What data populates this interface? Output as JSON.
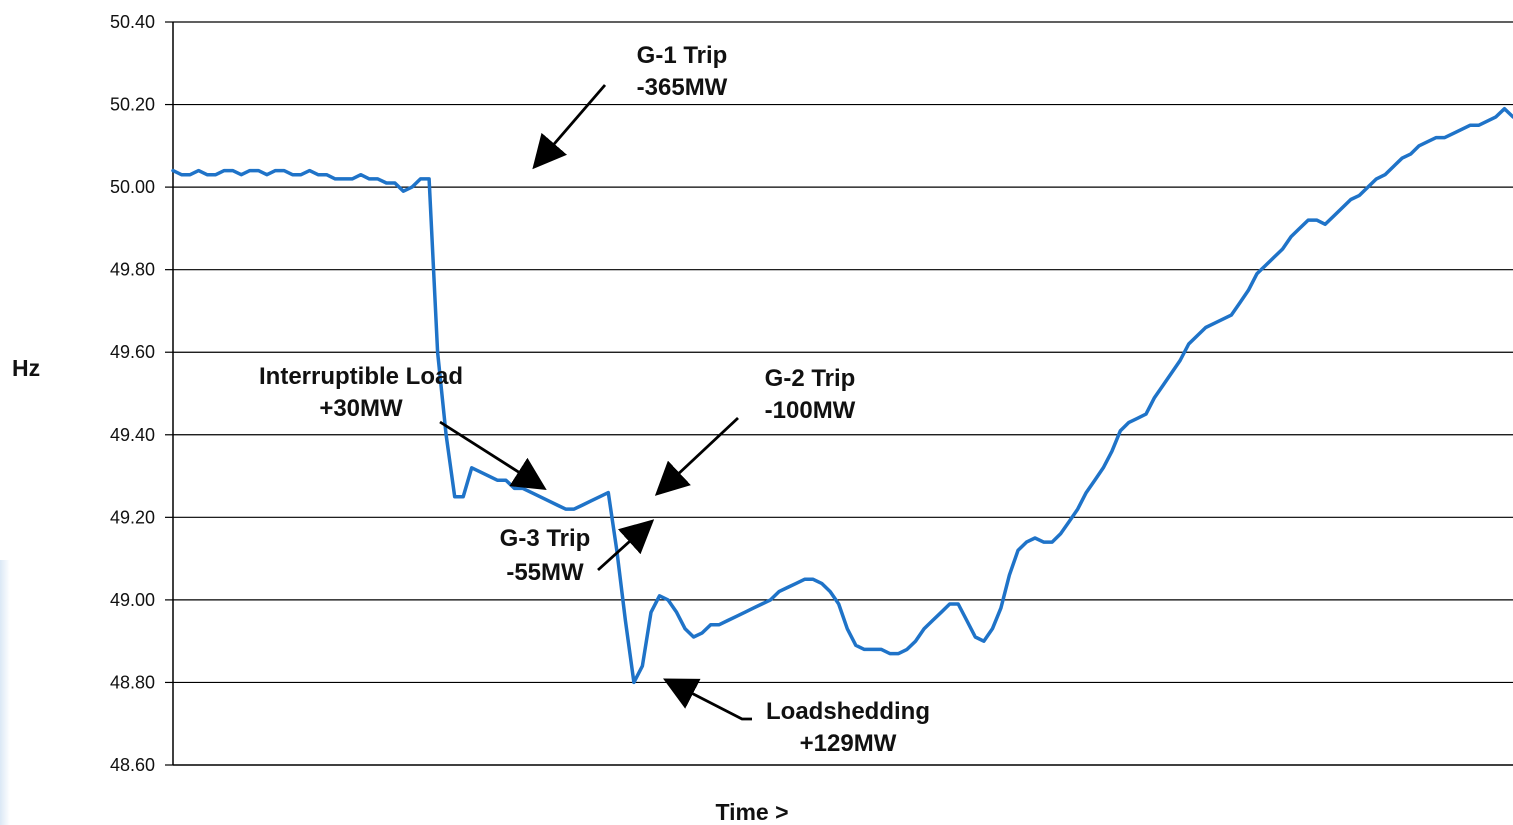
{
  "chart_data": {
    "type": "line",
    "xlabel": "Time >",
    "ylabel": "Hz",
    "ylim": [
      48.6,
      50.4
    ],
    "yticks": [
      "50.40",
      "50.20",
      "50.00",
      "49.80",
      "49.60",
      "49.40",
      "49.20",
      "49.00",
      "48.80",
      "48.60"
    ],
    "grid": true,
    "line_color": "#1f73c8",
    "series": [
      {
        "values": [
          50.04,
          50.03,
          50.03,
          50.04,
          50.03,
          50.03,
          50.04,
          50.04,
          50.03,
          50.04,
          50.04,
          50.03,
          50.04,
          50.04,
          50.03,
          50.03,
          50.04,
          50.03,
          50.03,
          50.02,
          50.02,
          50.02,
          50.03,
          50.02,
          50.02,
          50.01,
          50.01,
          49.99,
          50.0,
          50.02,
          50.02,
          49.6,
          49.4,
          49.25,
          49.25,
          49.32,
          49.31,
          49.3,
          49.29,
          49.29,
          49.27,
          49.27,
          49.26,
          49.25,
          49.24,
          49.23,
          49.22,
          49.22,
          49.23,
          49.24,
          49.25,
          49.26,
          49.12,
          48.95,
          48.8,
          48.84,
          48.97,
          49.01,
          49.0,
          48.97,
          48.93,
          48.91,
          48.92,
          48.94,
          48.94,
          48.95,
          48.96,
          48.97,
          48.98,
          48.99,
          49.0,
          49.02,
          49.03,
          49.04,
          49.05,
          49.05,
          49.04,
          49.02,
          48.99,
          48.93,
          48.89,
          48.88,
          48.88,
          48.88,
          48.87,
          48.87,
          48.88,
          48.9,
          48.93,
          48.95,
          48.97,
          48.99,
          48.99,
          48.95,
          48.91,
          48.9,
          48.93,
          48.98,
          49.06,
          49.12,
          49.14,
          49.15,
          49.14,
          49.14,
          49.16,
          49.19,
          49.22,
          49.26,
          49.29,
          49.32,
          49.36,
          49.41,
          49.43,
          49.44,
          49.45,
          49.49,
          49.52,
          49.55,
          49.58,
          49.62,
          49.64,
          49.66,
          49.67,
          49.68,
          49.69,
          49.72,
          49.75,
          49.79,
          49.81,
          49.83,
          49.85,
          49.88,
          49.9,
          49.92,
          49.92,
          49.91,
          49.93,
          49.95,
          49.97,
          49.98,
          50.0,
          50.02,
          50.03,
          50.05,
          50.07,
          50.08,
          50.1,
          50.11,
          50.12,
          50.12,
          50.13,
          50.14,
          50.15,
          50.15,
          50.16,
          50.17,
          50.19,
          50.17
        ]
      }
    ],
    "annotations": [
      {
        "lines": [
          "G-1 Trip",
          "-365MW"
        ]
      },
      {
        "lines": [
          "Interruptible Load",
          "+30MW"
        ]
      },
      {
        "lines": [
          "G-2 Trip",
          "-100MW"
        ]
      },
      {
        "lines": [
          "G-3 Trip",
          "-55MW"
        ]
      },
      {
        "lines": [
          "Loadshedding",
          "+129MW"
        ]
      }
    ]
  }
}
